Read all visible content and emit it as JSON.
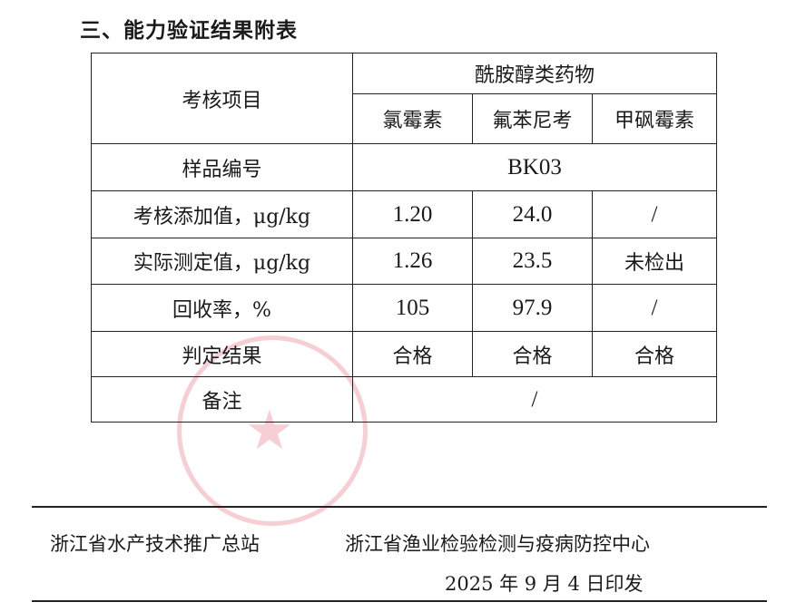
{
  "heading": "三、能力验证结果附表",
  "table": {
    "item_header": "考核项目",
    "group_header": "酰胺醇类药物",
    "drugs": [
      "氯霉素",
      "氟苯尼考",
      "甲砜霉素"
    ],
    "sample_label": "样品编号",
    "sample_value": "BK03",
    "rows": [
      {
        "label": "考核添加值，μg/kg",
        "values": [
          "1.20",
          "24.0",
          "/"
        ]
      },
      {
        "label": "实际测定值，μg/kg",
        "values": [
          "1.26",
          "23.5",
          "未检出"
        ]
      },
      {
        "label": "回收率，%",
        "values": [
          "105",
          "97.9",
          "/"
        ]
      },
      {
        "label": "判定结果",
        "values": [
          "合格",
          "合格",
          "合格"
        ]
      }
    ],
    "remark_label": "备注",
    "remark_value": "/"
  },
  "footer": {
    "org1": "浙江省水产技术推广总站",
    "org2": "浙江省渔业检验检测与疫病防控中心",
    "date": "2025 年 9 月 4 日印发"
  },
  "colors": {
    "stamp": "#dc3c50"
  }
}
